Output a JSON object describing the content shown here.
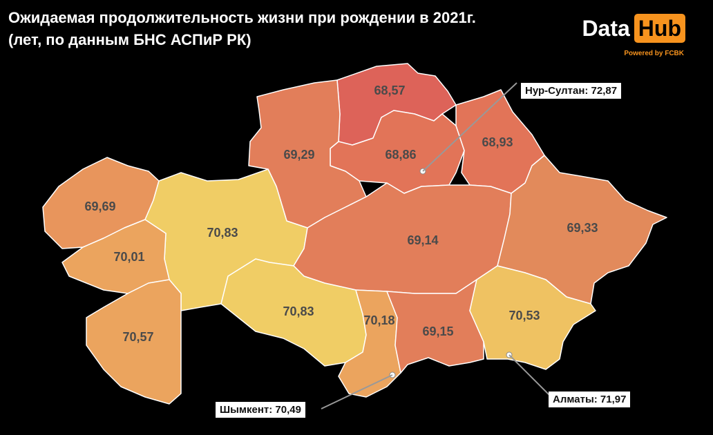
{
  "title": {
    "line1": "Ожидаемая продолжительность жизни при рождении в 2021г.",
    "line2": "(лет, по данным БНС АСПиР РК)"
  },
  "brand": {
    "word1": "Data",
    "word2": "Hub",
    "powered": "Powered by FCBK"
  },
  "colors": {
    "low": "#e0625a",
    "mid_low": "#e27a5a",
    "mid": "#e8945c",
    "mid_high": "#eba45e",
    "high": "#efc262",
    "highest": "#f0cd65"
  },
  "regions": [
    {
      "id": "north-kazakhstan",
      "value": "68,57"
    },
    {
      "id": "akmola",
      "value": "68,86"
    },
    {
      "id": "pavlodar",
      "value": "68,93"
    },
    {
      "id": "kostanay",
      "value": "69,29"
    },
    {
      "id": "west-kazakhstan",
      "value": "69,69"
    },
    {
      "id": "aktobe",
      "value": "70,83"
    },
    {
      "id": "atyrau",
      "value": "70,01"
    },
    {
      "id": "karaganda",
      "value": "69,14"
    },
    {
      "id": "east-kazakhstan",
      "value": "69,33"
    },
    {
      "id": "mangystau",
      "value": "70,57"
    },
    {
      "id": "kyzylorda",
      "value": "70,83"
    },
    {
      "id": "turkestan",
      "value": "70,18"
    },
    {
      "id": "zhambyl",
      "value": "69,15"
    },
    {
      "id": "almaty-region",
      "value": "70,53"
    }
  ],
  "cities": {
    "nur_sultan": "Нур-Султан: 72,87",
    "almaty": "Алматы: 71,97",
    "shymkent": "Шымкент: 70,49"
  }
}
